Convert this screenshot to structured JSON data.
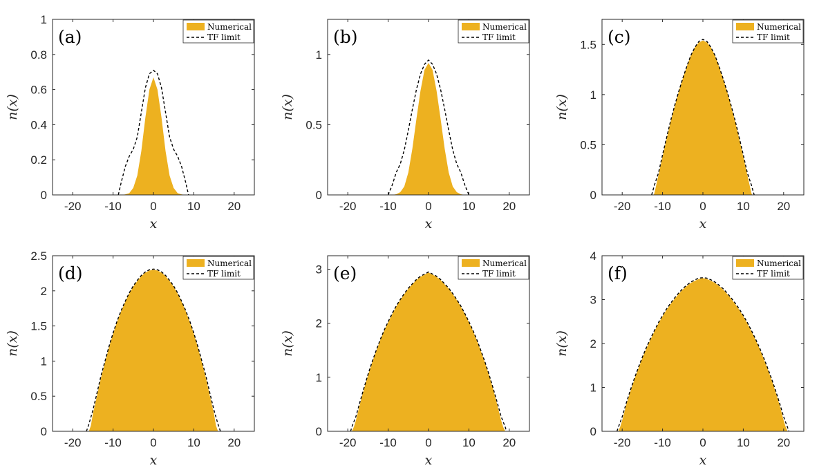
{
  "chart_data": [
    {
      "type": "area",
      "panel_label": "(a)",
      "xlabel": "x",
      "ylabel": "n(x)",
      "xlim": [
        -25,
        25
      ],
      "ylim": [
        0,
        1
      ],
      "xticks": [
        -20,
        -10,
        0,
        10,
        20
      ],
      "xtick_labels": [
        "-20",
        "-10",
        "0",
        "10",
        "20"
      ],
      "yticks": [
        0,
        0.2,
        0.4,
        0.6,
        0.8,
        1
      ],
      "ytick_labels": [
        "0",
        "0.2",
        "0.4",
        "0.6",
        "0.8",
        "1"
      ],
      "legend": {
        "position": "top-right",
        "entries": [
          "Numerical",
          "TF limit"
        ]
      },
      "series": [
        {
          "name": "Numerical",
          "style": "filled-area",
          "color": "#EDB120",
          "x": [
            -8,
            -7,
            -6,
            -5,
            -4,
            -3,
            -2,
            -1,
            0,
            1,
            2,
            3,
            4,
            5,
            6,
            7,
            8
          ],
          "y": [
            0,
            0.003,
            0.01,
            0.04,
            0.11,
            0.25,
            0.44,
            0.6,
            0.67,
            0.6,
            0.44,
            0.25,
            0.11,
            0.04,
            0.01,
            0.003,
            0
          ]
        },
        {
          "name": "TF limit",
          "style": "dashed",
          "color": "#000000",
          "x": [
            -8.7,
            -8,
            -7,
            -6,
            -5,
            -4,
            -3,
            -2,
            -1,
            0,
            1,
            2,
            3,
            4,
            5,
            6,
            7,
            8,
            8.7
          ],
          "y": [
            0,
            0.07,
            0.16,
            0.22,
            0.26,
            0.33,
            0.47,
            0.61,
            0.69,
            0.71,
            0.69,
            0.61,
            0.47,
            0.33,
            0.26,
            0.22,
            0.16,
            0.07,
            0
          ]
        }
      ]
    },
    {
      "type": "area",
      "panel_label": "(b)",
      "xlabel": "x",
      "ylabel": "n(x)",
      "xlim": [
        -25,
        25
      ],
      "ylim": [
        0,
        1.25
      ],
      "xticks": [
        -20,
        -10,
        0,
        10,
        20
      ],
      "xtick_labels": [
        "-20",
        "-10",
        "0",
        "10",
        "20"
      ],
      "yticks": [
        0,
        0.5,
        1
      ],
      "ytick_labels": [
        "0",
        "0.5",
        "1"
      ],
      "legend": {
        "position": "top-right",
        "entries": [
          "Numerical",
          "TF limit"
        ]
      },
      "series": [
        {
          "name": "Numerical",
          "style": "filled-area",
          "color": "#EDB120",
          "x": [
            -9,
            -8,
            -7,
            -6,
            -5,
            -4,
            -3,
            -2,
            -1,
            0,
            1,
            2,
            3,
            4,
            5,
            6,
            7,
            8,
            9
          ],
          "y": [
            0,
            0.005,
            0.02,
            0.06,
            0.16,
            0.33,
            0.54,
            0.74,
            0.89,
            0.94,
            0.89,
            0.74,
            0.54,
            0.33,
            0.16,
            0.06,
            0.02,
            0.005,
            0
          ]
        },
        {
          "name": "TF limit",
          "style": "dashed",
          "color": "#000000",
          "x": [
            -10,
            -9,
            -8,
            -7,
            -6,
            -5,
            -4,
            -3,
            -2,
            -1,
            0,
            1,
            2,
            3,
            4,
            5,
            6,
            7,
            8,
            9,
            10
          ],
          "y": [
            0,
            0.07,
            0.16,
            0.22,
            0.32,
            0.46,
            0.61,
            0.75,
            0.86,
            0.93,
            0.96,
            0.93,
            0.86,
            0.75,
            0.61,
            0.46,
            0.32,
            0.22,
            0.16,
            0.07,
            0
          ]
        }
      ]
    },
    {
      "type": "area",
      "panel_label": "(c)",
      "xlabel": "x",
      "ylabel": "n(x)",
      "xlim": [
        -25,
        25
      ],
      "ylim": [
        0,
        1.75
      ],
      "xticks": [
        -20,
        -10,
        0,
        10,
        20
      ],
      "xtick_labels": [
        "-20",
        "-10",
        "0",
        "10",
        "20"
      ],
      "yticks": [
        0,
        0.5,
        1,
        1.5
      ],
      "ytick_labels": [
        "0",
        "0.5",
        "1",
        "1.5"
      ],
      "legend": {
        "position": "top-right",
        "entries": [
          "Numerical",
          "TF limit"
        ]
      },
      "series": [
        {
          "name": "Numerical",
          "style": "filled-area",
          "color": "#EDB120",
          "x": [
            -12.2,
            -12,
            -11,
            -10,
            -9,
            -8,
            -7,
            -6,
            -5,
            -4,
            -3,
            -2,
            -1,
            0,
            1,
            2,
            3,
            4,
            5,
            6,
            7,
            8,
            9,
            10,
            11,
            12,
            12.2
          ],
          "y": [
            0,
            0.02,
            0.2,
            0.38,
            0.56,
            0.73,
            0.88,
            1.03,
            1.16,
            1.28,
            1.39,
            1.47,
            1.52,
            1.54,
            1.52,
            1.47,
            1.39,
            1.28,
            1.16,
            1.03,
            0.88,
            0.73,
            0.56,
            0.38,
            0.2,
            0.02,
            0
          ]
        },
        {
          "name": "TF limit",
          "style": "dashed",
          "color": "#000000",
          "x": [
            -12.7,
            -12,
            -11,
            -10,
            -9,
            -8,
            -7,
            -6,
            -5,
            -4,
            -3,
            -2,
            -1,
            0,
            1,
            2,
            3,
            4,
            5,
            6,
            7,
            8,
            9,
            10,
            11,
            12,
            12.7
          ],
          "y": [
            0,
            0.1,
            0.22,
            0.4,
            0.57,
            0.74,
            0.89,
            1.03,
            1.16,
            1.28,
            1.39,
            1.47,
            1.53,
            1.55,
            1.53,
            1.47,
            1.39,
            1.28,
            1.16,
            1.03,
            0.89,
            0.74,
            0.57,
            0.4,
            0.22,
            0.1,
            0
          ]
        }
      ]
    },
    {
      "type": "area",
      "panel_label": "(d)",
      "xlabel": "x",
      "ylabel": "n(x)",
      "xlim": [
        -25,
        25
      ],
      "ylim": [
        0,
        2.5
      ],
      "xticks": [
        -20,
        -10,
        0,
        10,
        20
      ],
      "xtick_labels": [
        "-20",
        "-10",
        "0",
        "10",
        "20"
      ],
      "yticks": [
        0,
        0.5,
        1,
        1.5,
        2,
        2.5
      ],
      "ytick_labels": [
        "0",
        "0.5",
        "1",
        "1.5",
        "2",
        "2.5"
      ],
      "legend": {
        "position": "top-right",
        "entries": [
          "Numerical",
          "TF limit"
        ]
      },
      "series": [
        {
          "name": "Numerical",
          "style": "filled-area",
          "color": "#EDB120",
          "x": [
            -16,
            -15.5,
            -15,
            -14,
            -13,
            -12,
            -11,
            -10,
            -9,
            -8,
            -7,
            -6,
            -5,
            -4,
            -3,
            -2,
            -1,
            0,
            1,
            2,
            3,
            4,
            5,
            6,
            7,
            8,
            9,
            10,
            11,
            12,
            13,
            14,
            15,
            15.5,
            16
          ],
          "y": [
            0,
            0.08,
            0.25,
            0.5,
            0.76,
            0.98,
            1.2,
            1.39,
            1.56,
            1.71,
            1.84,
            1.96,
            2.06,
            2.14,
            2.21,
            2.26,
            2.29,
            2.3,
            2.29,
            2.26,
            2.21,
            2.14,
            2.06,
            1.96,
            1.84,
            1.71,
            1.56,
            1.39,
            1.2,
            0.98,
            0.76,
            0.5,
            0.25,
            0.08,
            0
          ]
        },
        {
          "name": "TF limit",
          "style": "dashed",
          "color": "#000000",
          "x": [
            -16.6,
            -16,
            -15,
            -14,
            -13,
            -12,
            -11,
            -10,
            -9,
            -8,
            -7,
            -6,
            -5,
            -4,
            -3,
            -2,
            -1,
            0,
            1,
            2,
            3,
            4,
            5,
            6,
            7,
            8,
            9,
            10,
            11,
            12,
            13,
            14,
            15,
            16,
            16.6
          ],
          "y": [
            0,
            0.1,
            0.3,
            0.54,
            0.79,
            1.0,
            1.21,
            1.4,
            1.57,
            1.72,
            1.85,
            1.97,
            2.07,
            2.15,
            2.22,
            2.27,
            2.3,
            2.31,
            2.3,
            2.27,
            2.22,
            2.15,
            2.07,
            1.97,
            1.85,
            1.72,
            1.57,
            1.4,
            1.21,
            1.0,
            0.79,
            0.54,
            0.3,
            0.1,
            0
          ]
        }
      ]
    },
    {
      "type": "area",
      "panel_label": "(e)",
      "xlabel": "x",
      "ylabel": "n(x)",
      "xlim": [
        -25,
        25
      ],
      "ylim": [
        0,
        3.25
      ],
      "xticks": [
        -20,
        -10,
        0,
        10,
        20
      ],
      "xtick_labels": [
        "-20",
        "-10",
        "0",
        "10",
        "20"
      ],
      "yticks": [
        0,
        1,
        2,
        3
      ],
      "ytick_labels": [
        "0",
        "1",
        "2",
        "3"
      ],
      "legend": {
        "position": "top-right",
        "entries": [
          "Numerical",
          "TF limit"
        ]
      },
      "series": [
        {
          "name": "Numerical",
          "style": "filled-area",
          "color": "#EDB120",
          "x": [
            -19,
            -18.5,
            -18,
            -17,
            -16,
            -15,
            -14,
            -13,
            -12,
            -11,
            -10,
            -9,
            -8,
            -7,
            -6,
            -5,
            -4,
            -3,
            -2,
            -1,
            0,
            1,
            2,
            3,
            4,
            5,
            6,
            7,
            8,
            9,
            10,
            11,
            12,
            13,
            14,
            15,
            16,
            17,
            18,
            18.5,
            19
          ],
          "y": [
            0,
            0.08,
            0.2,
            0.5,
            0.78,
            1.04,
            1.27,
            1.48,
            1.68,
            1.86,
            2.02,
            2.17,
            2.31,
            2.43,
            2.54,
            2.64,
            2.72,
            2.8,
            2.86,
            2.9,
            2.94,
            2.9,
            2.86,
            2.8,
            2.72,
            2.64,
            2.54,
            2.43,
            2.31,
            2.17,
            2.02,
            1.86,
            1.68,
            1.48,
            1.27,
            1.04,
            0.78,
            0.5,
            0.2,
            0.08,
            0
          ]
        },
        {
          "name": "TF limit",
          "style": "dashed",
          "color": "#000000",
          "x": [
            -19.3,
            -19,
            -18,
            -17,
            -16,
            -15,
            -14,
            -13,
            -12,
            -11,
            -10,
            -9,
            -8,
            -7,
            -6,
            -5,
            -4,
            -3,
            -2,
            -1,
            0,
            1,
            2,
            3,
            4,
            5,
            6,
            7,
            8,
            9,
            10,
            11,
            12,
            13,
            14,
            15,
            16,
            17,
            18,
            19,
            19.3
          ],
          "y": [
            0,
            0.08,
            0.27,
            0.54,
            0.8,
            1.05,
            1.28,
            1.49,
            1.69,
            1.87,
            2.03,
            2.18,
            2.32,
            2.44,
            2.55,
            2.65,
            2.73,
            2.81,
            2.87,
            2.91,
            2.95,
            2.91,
            2.87,
            2.81,
            2.73,
            2.65,
            2.55,
            2.44,
            2.32,
            2.18,
            2.03,
            1.87,
            1.69,
            1.49,
            1.28,
            1.05,
            0.8,
            0.54,
            0.27,
            0.08,
            0
          ]
        }
      ]
    },
    {
      "type": "area",
      "panel_label": "(f)",
      "xlabel": "x",
      "ylabel": "n(x)",
      "xlim": [
        -25,
        25
      ],
      "ylim": [
        0,
        4
      ],
      "xticks": [
        -20,
        -10,
        0,
        10,
        20
      ],
      "xtick_labels": [
        "-20",
        "-10",
        "0",
        "10",
        "20"
      ],
      "yticks": [
        0,
        1,
        2,
        3,
        4
      ],
      "ytick_labels": [
        "0",
        "1",
        "2",
        "3",
        "4"
      ],
      "legend": {
        "position": "top-right",
        "entries": [
          "Numerical",
          "TF limit"
        ]
      },
      "series": [
        {
          "name": "Numerical",
          "style": "filled-area",
          "color": "#EDB120",
          "x": [
            -21,
            -20.5,
            -20,
            -19,
            -18,
            -17,
            -16,
            -15,
            -14,
            -13,
            -12,
            -11,
            -10,
            -9,
            -8,
            -7,
            -6,
            -5,
            -4,
            -3,
            -2,
            -1,
            0,
            1,
            2,
            3,
            4,
            5,
            6,
            7,
            8,
            9,
            10,
            11,
            12,
            13,
            14,
            15,
            16,
            17,
            18,
            19,
            20,
            20.5,
            21
          ],
          "y": [
            0,
            0.1,
            0.25,
            0.6,
            0.9,
            1.18,
            1.43,
            1.67,
            1.89,
            2.09,
            2.28,
            2.46,
            2.62,
            2.77,
            2.9,
            3.02,
            3.13,
            3.23,
            3.31,
            3.38,
            3.43,
            3.47,
            3.49,
            3.47,
            3.43,
            3.38,
            3.31,
            3.23,
            3.13,
            3.02,
            2.9,
            2.77,
            2.62,
            2.46,
            2.28,
            2.09,
            1.89,
            1.67,
            1.43,
            1.18,
            0.9,
            0.6,
            0.25,
            0.1,
            0
          ]
        },
        {
          "name": "TF limit",
          "style": "dashed",
          "color": "#000000",
          "x": [
            -21.3,
            -21,
            -20,
            -19,
            -18,
            -17,
            -16,
            -15,
            -14,
            -13,
            -12,
            -11,
            -10,
            -9,
            -8,
            -7,
            -6,
            -5,
            -4,
            -3,
            -2,
            -1,
            0,
            1,
            2,
            3,
            4,
            5,
            6,
            7,
            8,
            9,
            10,
            11,
            12,
            13,
            14,
            15,
            16,
            17,
            18,
            19,
            20,
            21,
            21.3
          ],
          "y": [
            0,
            0.08,
            0.33,
            0.64,
            0.93,
            1.2,
            1.45,
            1.69,
            1.91,
            2.11,
            2.3,
            2.48,
            2.64,
            2.79,
            2.92,
            3.04,
            3.15,
            3.25,
            3.33,
            3.4,
            3.45,
            3.49,
            3.5,
            3.49,
            3.45,
            3.4,
            3.33,
            3.25,
            3.15,
            3.04,
            2.92,
            2.79,
            2.64,
            2.48,
            2.3,
            2.11,
            1.91,
            1.69,
            1.45,
            1.2,
            0.93,
            0.64,
            0.33,
            0.08,
            0
          ]
        }
      ]
    }
  ]
}
